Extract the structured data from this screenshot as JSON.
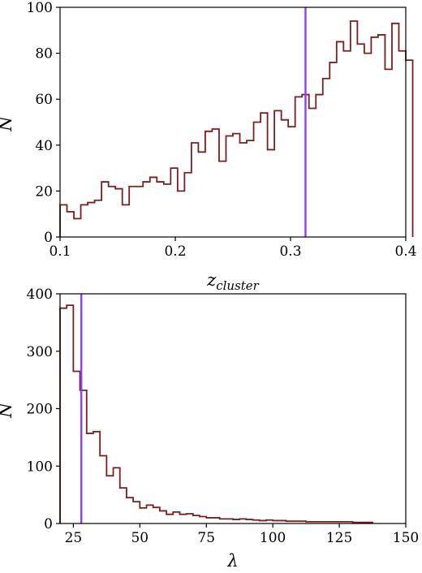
{
  "chart_data": [
    {
      "type": "histogram",
      "xlabel": "z",
      "xlabel_sub": "cluster",
      "ylabel": "N",
      "xlim": [
        0.1,
        0.4
      ],
      "ylim": [
        0,
        100
      ],
      "xticks": [
        "0.1",
        "0.2",
        "0.3",
        "0.4"
      ],
      "yticks": [
        "0",
        "20",
        "40",
        "60",
        "80",
        "100"
      ],
      "bin_start": 0.1,
      "bin_width": 0.006,
      "values": [
        14,
        11,
        8,
        14,
        15,
        16,
        24,
        22,
        21,
        14,
        22,
        22,
        24,
        26,
        24,
        23,
        30,
        20,
        28,
        41,
        37,
        46,
        47,
        33,
        44,
        45,
        41,
        42,
        50,
        54,
        38,
        55,
        51,
        48,
        61,
        62,
        56,
        62,
        69,
        76,
        85,
        81,
        94,
        84,
        80,
        87,
        88,
        73,
        93,
        81,
        77
      ],
      "hist_color": "#7a1f1f",
      "vline": {
        "x": 0.313,
        "color": "#8a3ffc"
      }
    },
    {
      "type": "histogram",
      "xlabel": "λ",
      "ylabel": "N",
      "xlim": [
        20,
        150
      ],
      "ylim": [
        0,
        400
      ],
      "xticks": [
        "25",
        "50",
        "75",
        "100",
        "125",
        "150"
      ],
      "yticks": [
        "0",
        "100",
        "200",
        "300",
        "400"
      ],
      "bin_start": 20,
      "bin_width": 2.5,
      "values": [
        375,
        380,
        265,
        232,
        157,
        160,
        118,
        83,
        97,
        62,
        45,
        38,
        27,
        32,
        28,
        22,
        16,
        20,
        16,
        17,
        14,
        12,
        10,
        10,
        8,
        8,
        7,
        8,
        7,
        6,
        5,
        6,
        5,
        5,
        4,
        4,
        4,
        3,
        3,
        3,
        3,
        3,
        3,
        3,
        2,
        2,
        2
      ],
      "hist_color": "#7a1f1f",
      "vline": {
        "x": 28,
        "color": "#8a3ffc"
      }
    }
  ]
}
